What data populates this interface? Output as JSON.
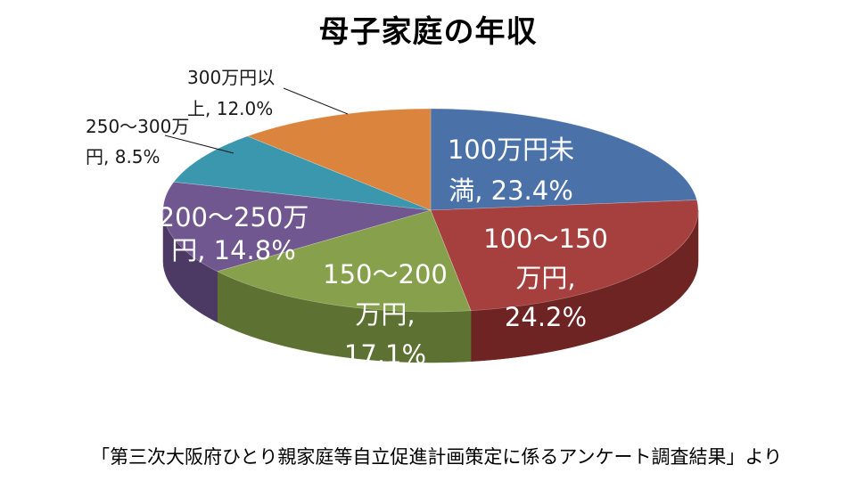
{
  "chart_data": {
    "type": "pie",
    "title": "母子家庭の年収",
    "style": "3d-pie",
    "source_note": "「第三次大阪府ひとり親家庭等自立促進計画策定に係るアンケート調査結果」より",
    "slices": [
      {
        "label": "100万円未満",
        "value": 23.4,
        "color": "#4A72A8",
        "side": "#34527A",
        "label_lines": [
          "100万円未",
          "満, 23.4%"
        ],
        "label_position": "inside"
      },
      {
        "label": "100〜150万円",
        "value": 24.2,
        "color": "#A6403E",
        "side": "#6E2422",
        "label_lines": [
          "100〜150",
          "万円,",
          "24.2%"
        ],
        "label_position": "inside"
      },
      {
        "label": "150〜200万円",
        "value": 17.1,
        "color": "#87A04C",
        "side": "#5D7232",
        "label_lines": [
          "150〜200",
          "万円,",
          "17.1%"
        ],
        "label_position": "inside"
      },
      {
        "label": "200〜250万円",
        "value": 14.8,
        "color": "#70578F",
        "side": "#4C3A64",
        "label_lines": [
          "200〜250万",
          "円, 14.8%"
        ],
        "label_position": "inside"
      },
      {
        "label": "250〜300万円",
        "value": 8.5,
        "color": "#3B97AE",
        "side": "#256A7C",
        "label_lines": [
          "250〜300万",
          "円, 8.5%"
        ],
        "label_position": "outside"
      },
      {
        "label": "300万円以上",
        "value": 12.0,
        "color": "#DB843D",
        "side": "#A85E22",
        "label_lines": [
          "300万円以",
          "上, 12.0%"
        ],
        "label_position": "outside"
      }
    ]
  }
}
